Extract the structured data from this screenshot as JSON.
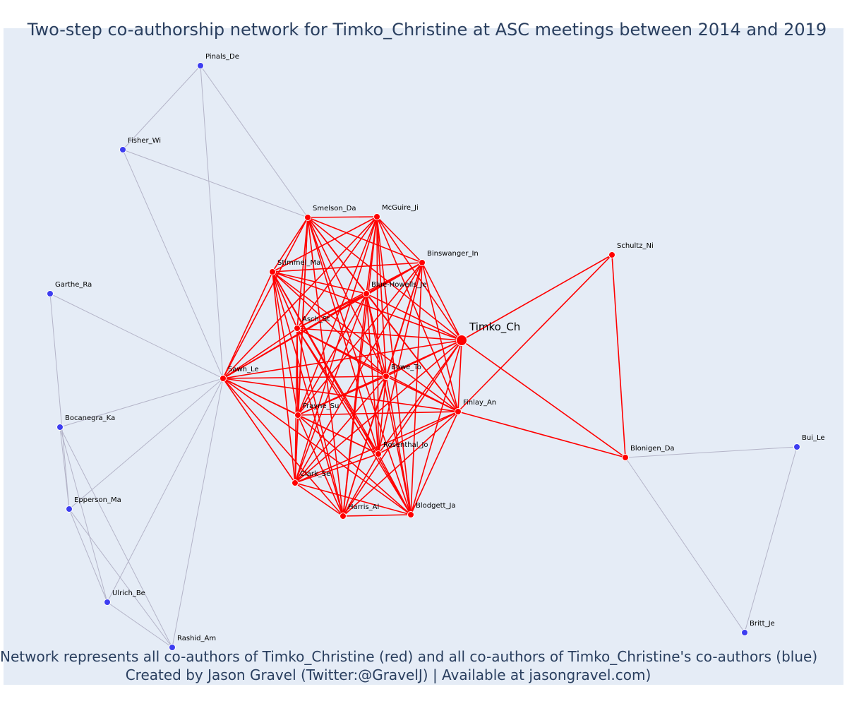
{
  "title": "Two-step co-authorship network for Timko_Christine at ASC meetings between 2014 and 2019",
  "caption_line1": "Network represents all co-authors of Timko_Christine (red) and all co-authors of Timko_Christine's co-authors (blue)",
  "caption_line2": "Created by Jason Gravel (Twitter:@GravelJ) | Available at jasongravel.com)",
  "colors": {
    "background": "#e5ecf6",
    "first_degree": "#ff0000",
    "second_degree": "#3d3df0",
    "second_edge": "#b4b4c8",
    "text": "#2a3f5f"
  },
  "nodes": [
    {
      "id": "Timko_Ch",
      "group": "ego"
    },
    {
      "id": "Smelson_Da",
      "group": "red"
    },
    {
      "id": "McGuire_Ji",
      "group": "red"
    },
    {
      "id": "Binswanger_In",
      "group": "red"
    },
    {
      "id": "Stimmel_Ma",
      "group": "red"
    },
    {
      "id": "Blue-Howells_Je",
      "group": "red"
    },
    {
      "id": "Asch_St",
      "group": "red"
    },
    {
      "id": "Sawh_Le",
      "group": "red"
    },
    {
      "id": "Bowe_To",
      "group": "red"
    },
    {
      "id": "Finlay_An",
      "group": "red"
    },
    {
      "id": "Frayne_Su",
      "group": "red"
    },
    {
      "id": "Rosenthal_Jo",
      "group": "red"
    },
    {
      "id": "Clark_Se",
      "group": "red"
    },
    {
      "id": "Harris_Al",
      "group": "red"
    },
    {
      "id": "Blodgett_Ja",
      "group": "red"
    },
    {
      "id": "Schultz_Ni",
      "group": "red"
    },
    {
      "id": "Blonigen_Da",
      "group": "red"
    },
    {
      "id": "Pinals_De",
      "group": "blue"
    },
    {
      "id": "Fisher_Wi",
      "group": "blue"
    },
    {
      "id": "Garthe_Ra",
      "group": "blue"
    },
    {
      "id": "Bocanegra_Ka",
      "group": "blue"
    },
    {
      "id": "Epperson_Ma",
      "group": "blue"
    },
    {
      "id": "Ulrich_Be",
      "group": "blue"
    },
    {
      "id": "Rashid_Am",
      "group": "blue"
    },
    {
      "id": "Bui_Le",
      "group": "blue"
    },
    {
      "id": "Britt_Je",
      "group": "blue"
    }
  ],
  "red_clique": [
    "Timko_Ch",
    "Smelson_Da",
    "McGuire_Ji",
    "Binswanger_In",
    "Stimmel_Ma",
    "Blue-Howells_Je",
    "Asch_St",
    "Sawh_Le",
    "Bowe_To",
    "Finlay_An",
    "Frayne_Su",
    "Rosenthal_Jo",
    "Clark_Se",
    "Harris_Al",
    "Blodgett_Ja"
  ],
  "red_edges": [
    [
      "Timko_Ch",
      "Schultz_Ni"
    ],
    [
      "Timko_Ch",
      "Blonigen_Da"
    ],
    [
      "Finlay_An",
      "Schultz_Ni"
    ],
    [
      "Finlay_An",
      "Blonigen_Da"
    ],
    [
      "Schultz_Ni",
      "Blonigen_Da"
    ]
  ],
  "blue_edges": [
    [
      "Pinals_De",
      "Fisher_Wi"
    ],
    [
      "Pinals_De",
      "Smelson_Da"
    ],
    [
      "Pinals_De",
      "Sawh_Le"
    ],
    [
      "Fisher_Wi",
      "Smelson_Da"
    ],
    [
      "Fisher_Wi",
      "Sawh_Le"
    ],
    [
      "Garthe_Ra",
      "Sawh_Le"
    ],
    [
      "Garthe_Ra",
      "Epperson_Ma"
    ],
    [
      "Bocanegra_Ka",
      "Sawh_Le"
    ],
    [
      "Bocanegra_Ka",
      "Epperson_Ma"
    ],
    [
      "Bocanegra_Ka",
      "Ulrich_Be"
    ],
    [
      "Bocanegra_Ka",
      "Rashid_Am"
    ],
    [
      "Epperson_Ma",
      "Sawh_Le"
    ],
    [
      "Epperson_Ma",
      "Ulrich_Be"
    ],
    [
      "Epperson_Ma",
      "Rashid_Am"
    ],
    [
      "Ulrich_Be",
      "Sawh_Le"
    ],
    [
      "Ulrich_Be",
      "Rashid_Am"
    ],
    [
      "Rashid_Am",
      "Sawh_Le"
    ],
    [
      "Blonigen_Da",
      "Bui_Le"
    ],
    [
      "Blonigen_Da",
      "Britt_Je"
    ],
    [
      "Bui_Le",
      "Britt_Je"
    ]
  ]
}
